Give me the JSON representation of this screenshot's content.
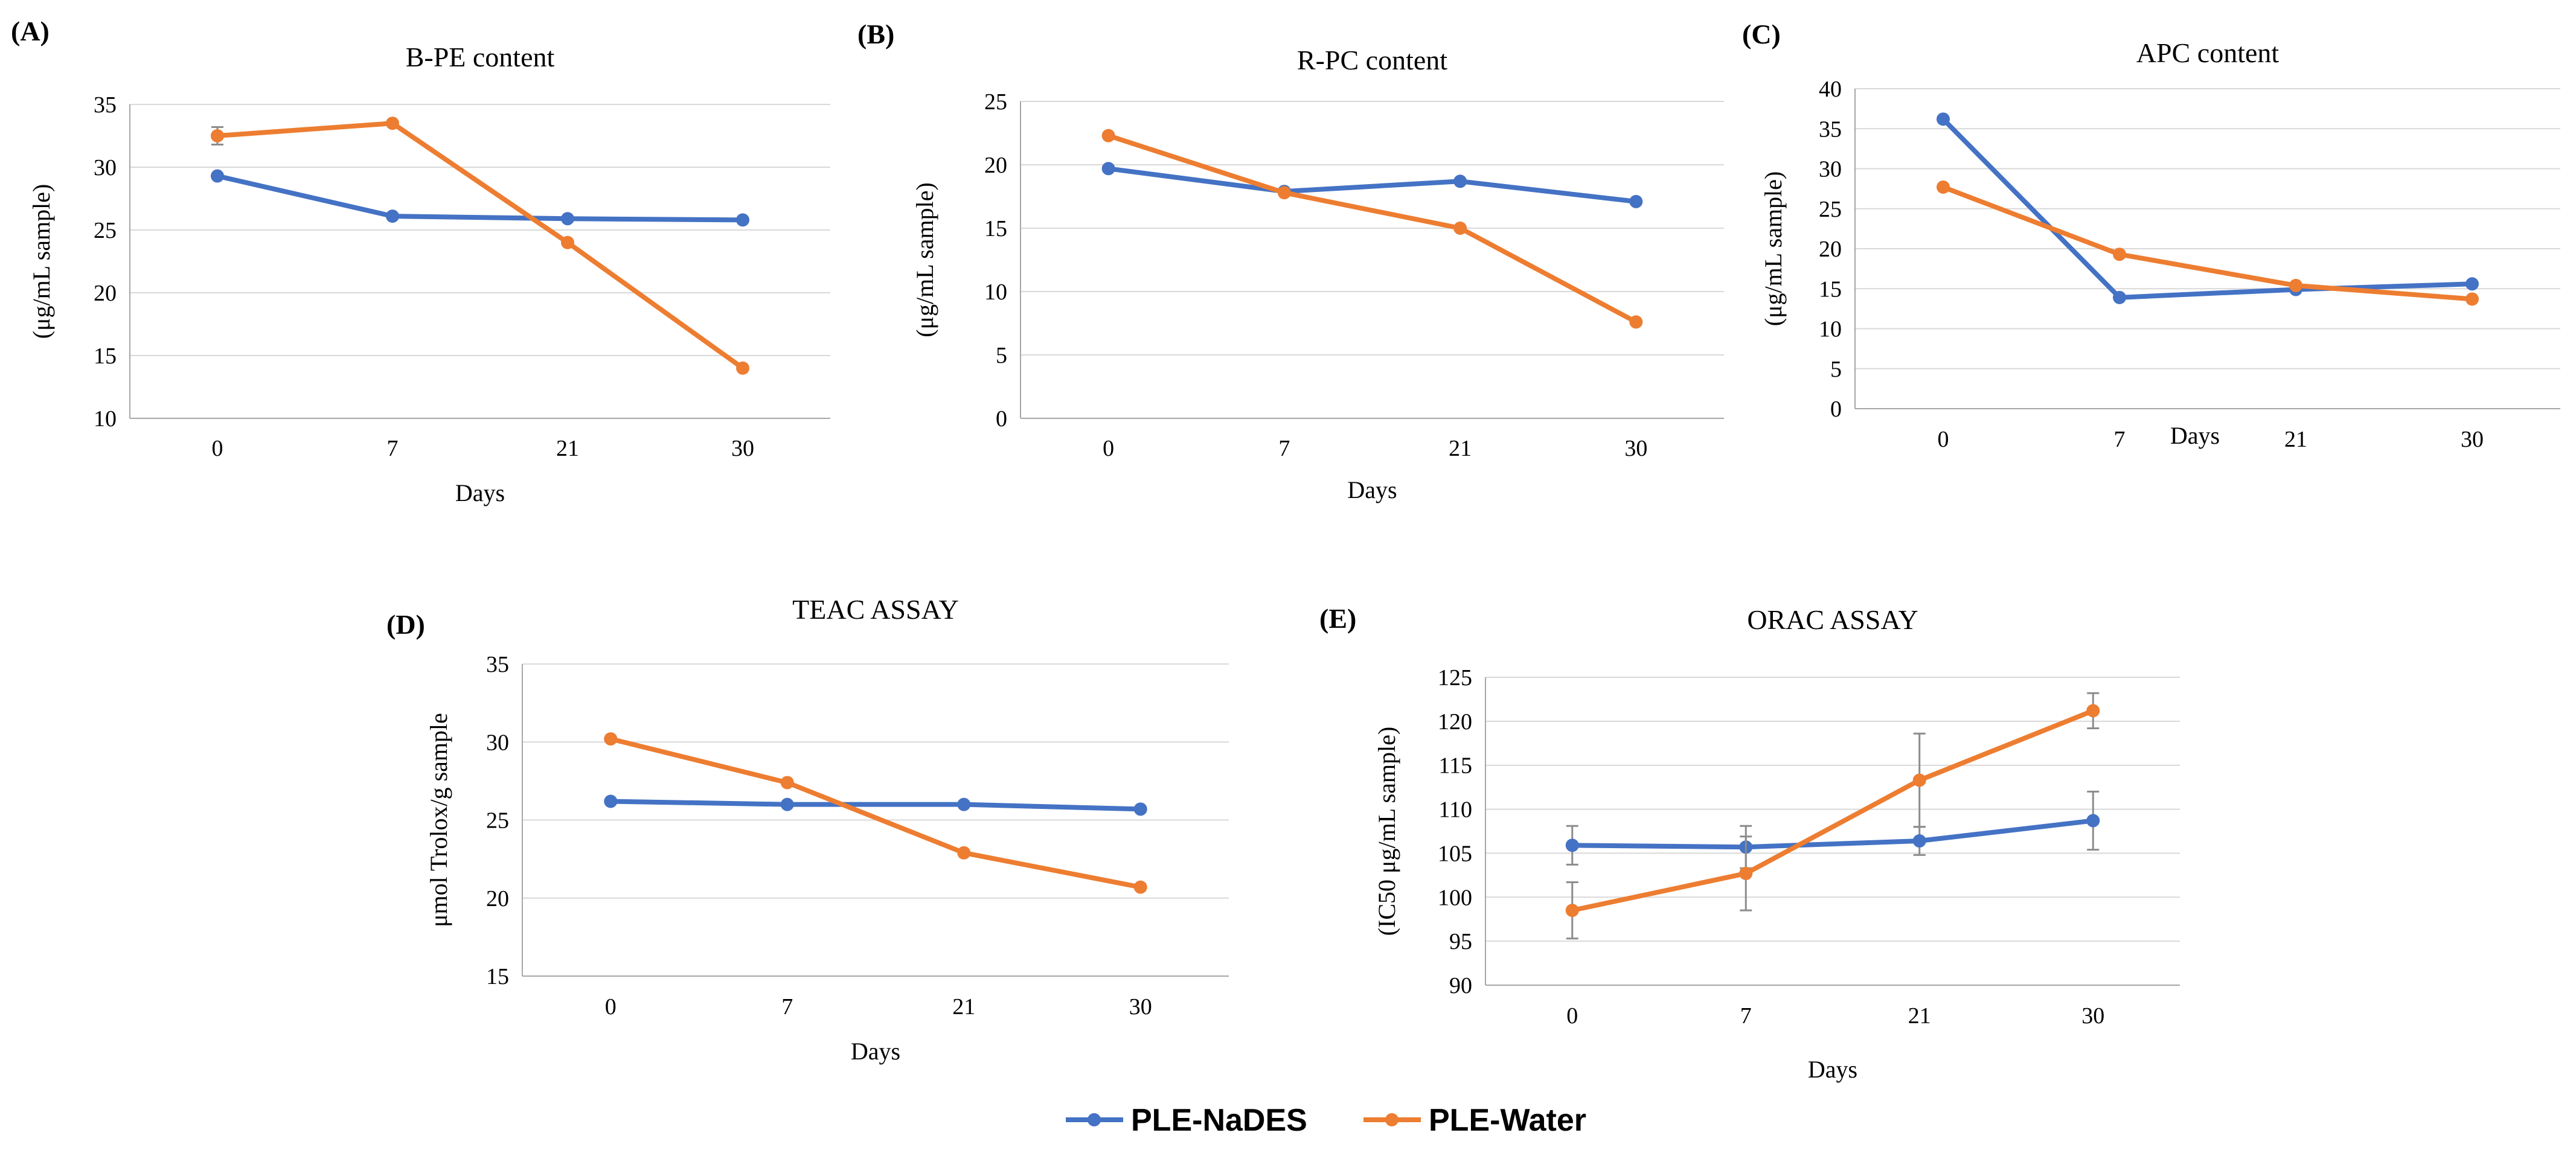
{
  "colors": {
    "nades": "#4472C4",
    "water": "#ED7D31",
    "grid": "#D9D9D9",
    "axis": "#A6A6A6",
    "errorbar": "#8C8C8C",
    "text": "#000000"
  },
  "legend": {
    "items": [
      "PLE-NaDES",
      "PLE-Water"
    ]
  },
  "chart_data": [
    {
      "panel": "(A)",
      "type": "line",
      "title": "B-PE content",
      "xlabel": "Days",
      "ylabel": "(μg/mL sample)",
      "categories": [
        "0",
        "7",
        "21",
        "30"
      ],
      "ylim": [
        10,
        35
      ],
      "yticks": [
        "10",
        "15",
        "20",
        "25",
        "30",
        "35"
      ],
      "series": [
        {
          "name": "PLE-NaDES",
          "values": [
            29.3,
            26.1,
            25.9,
            25.8
          ]
        },
        {
          "name": "PLE-Water",
          "values": [
            32.5,
            33.5,
            24.0,
            14.0
          ],
          "errors": [
            0.7,
            0,
            0,
            0
          ]
        }
      ]
    },
    {
      "panel": "(B)",
      "type": "line",
      "title": "R-PC content",
      "xlabel": "Days",
      "ylabel": "(μg/mL sample)",
      "categories": [
        "0",
        "7",
        "21",
        "30"
      ],
      "ylim": [
        0,
        25
      ],
      "yticks": [
        "0",
        "5",
        "10",
        "15",
        "20",
        "25"
      ],
      "series": [
        {
          "name": "PLE-NaDES",
          "values": [
            19.7,
            17.9,
            18.7,
            17.1
          ]
        },
        {
          "name": "PLE-Water",
          "values": [
            22.3,
            17.8,
            15.0,
            7.6
          ]
        }
      ]
    },
    {
      "panel": "(C)",
      "type": "line",
      "title": "APC content",
      "xlabel": "Days",
      "ylabel": "(μg/mL sample)",
      "categories": [
        "0",
        "7",
        "21",
        "30"
      ],
      "ylim": [
        0,
        40
      ],
      "yticks": [
        "0",
        "5",
        "10",
        "15",
        "20",
        "25",
        "30",
        "35",
        "40"
      ],
      "series": [
        {
          "name": "PLE-NaDES",
          "values": [
            36.2,
            13.9,
            14.9,
            15.6
          ]
        },
        {
          "name": "PLE-Water",
          "values": [
            27.7,
            19.3,
            15.4,
            13.7
          ]
        }
      ]
    },
    {
      "panel": "(D)",
      "type": "line",
      "title": "TEAC ASSAY",
      "xlabel": "Days",
      "ylabel": "μmol Trolox/g sample",
      "categories": [
        "0",
        "7",
        "21",
        "30"
      ],
      "ylim": [
        15,
        35
      ],
      "yticks": [
        "15",
        "20",
        "25",
        "30",
        "35"
      ],
      "series": [
        {
          "name": "PLE-NaDES",
          "values": [
            26.2,
            26.0,
            26.0,
            25.7
          ]
        },
        {
          "name": "PLE-Water",
          "values": [
            30.2,
            27.4,
            22.9,
            20.7
          ]
        }
      ]
    },
    {
      "panel": "(E)",
      "type": "line",
      "title": "ORAC ASSAY",
      "xlabel": "Days",
      "ylabel": "(IC50 μg/mL sample)",
      "categories": [
        "0",
        "7",
        "21",
        "30"
      ],
      "ylim": [
        90,
        125
      ],
      "yticks": [
        "90",
        "95",
        "100",
        "105",
        "110",
        "115",
        "120",
        "125"
      ],
      "series": [
        {
          "name": "PLE-NaDES",
          "values": [
            105.9,
            105.7,
            106.4,
            108.7
          ],
          "errors": [
            2.2,
            2.4,
            1.6,
            3.3
          ]
        },
        {
          "name": "PLE-Water",
          "values": [
            98.5,
            102.7,
            113.3,
            121.2
          ],
          "errors": [
            3.2,
            4.2,
            5.3,
            2.0
          ]
        }
      ]
    }
  ]
}
